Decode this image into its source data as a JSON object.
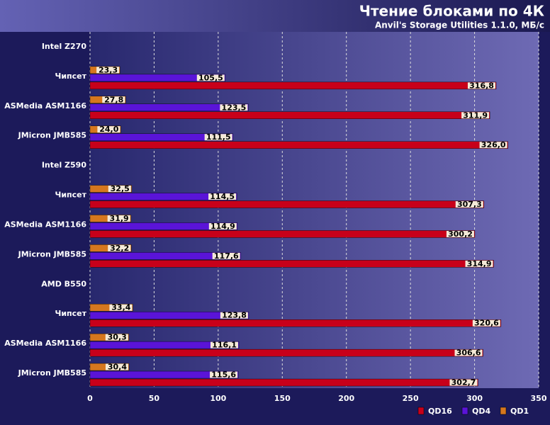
{
  "chart_data": {
    "type": "bar",
    "title": "Чтение блоками по 4К",
    "subtitle": "Anvil's Storage Utilities 1.1.0, МБ/с",
    "categories": [
      "Intel Z270",
      "Чипсет",
      "ASMedia ASM1166",
      "JMicron JMB585",
      "Intel Z590",
      "Чипсет",
      "ASMedia ASM1166",
      "JMicron JMB585",
      "AMD B550",
      "Чипсет",
      "ASMedia ASM1166",
      "JMicron JMB585"
    ],
    "series": [
      {
        "name": "QD1",
        "color": "#d6771e",
        "values": [
          null,
          23.3,
          27.8,
          24.0,
          null,
          32.5,
          31.9,
          32.2,
          null,
          33.4,
          30.3,
          30.4
        ],
        "value_labels": [
          null,
          "23,3",
          "27,8",
          "24,0",
          null,
          "32,5",
          "31,9",
          "32,2",
          null,
          "33,4",
          "30,3",
          "30,4"
        ]
      },
      {
        "name": "QD4",
        "color": "#5a14d8",
        "values": [
          null,
          105.5,
          123.5,
          111.5,
          null,
          114.5,
          114.9,
          117.6,
          null,
          123.8,
          116.1,
          115.6
        ],
        "value_labels": [
          null,
          "105,5",
          "123,5",
          "111,5",
          null,
          "114,5",
          "114,9",
          "117,6",
          null,
          "123,8",
          "116,1",
          "115,6"
        ]
      },
      {
        "name": "QD16",
        "color": "#c8001a",
        "values": [
          null,
          316.8,
          311.9,
          326.0,
          null,
          307.3,
          300.2,
          314.9,
          null,
          320.6,
          306.6,
          302.7
        ],
        "value_labels": [
          null,
          "316,8",
          "311,9",
          "326,0",
          null,
          "307,3",
          "300,2",
          "314,9",
          null,
          "320,6",
          "306,6",
          "302,7"
        ]
      }
    ],
    "xlim": [
      0,
      350
    ],
    "xticks": [
      0,
      50,
      100,
      150,
      200,
      250,
      300,
      350
    ],
    "grid": true
  }
}
